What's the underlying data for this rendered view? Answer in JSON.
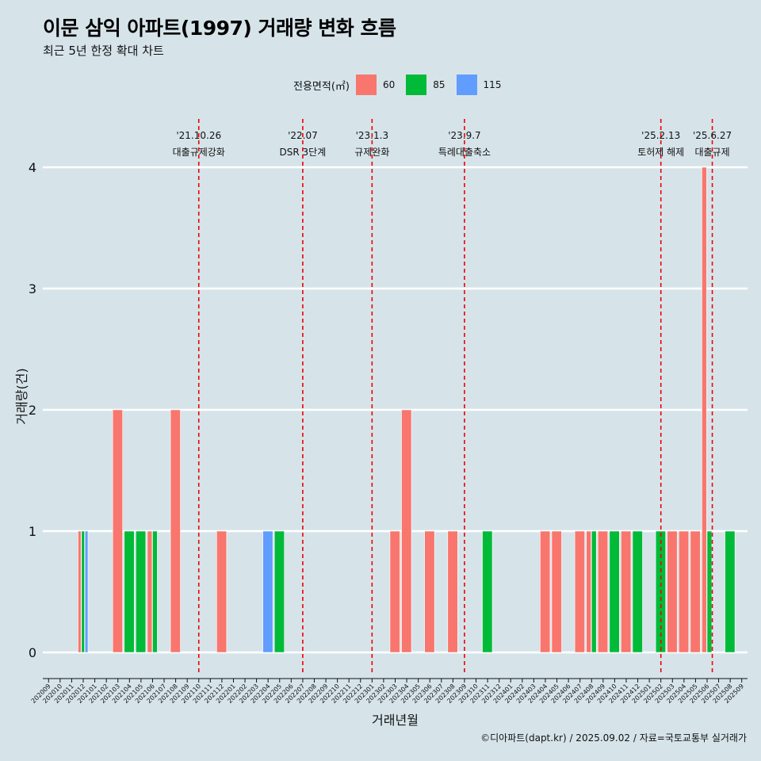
{
  "title": "이문 삼익 아파트(1997) 거래량 변화 흐름",
  "subtitle": "최근 5년 한정 확대 차트",
  "caption": "©디아파트(dapt.kr) / 2025.09.02 / 자료=국토교통부 실거래가",
  "legend": {
    "title": "전용면적(㎡)",
    "items": [
      {
        "label": "60",
        "color": "#f8766d"
      },
      {
        "label": "85",
        "color": "#00ba38"
      },
      {
        "label": "115",
        "color": "#619cff"
      }
    ]
  },
  "chart_data": {
    "type": "bar",
    "stacked": false,
    "title": "이문 삼익 아파트(1997) 거래량 변화 흐름",
    "xlabel": "거래년월",
    "ylabel": "거래량(건)",
    "ylim": [
      0,
      4
    ],
    "yticks": [
      0,
      1,
      2,
      3,
      4
    ],
    "categories": [
      "202009",
      "202010",
      "202011",
      "202012",
      "202101",
      "202102",
      "202103",
      "202104",
      "202105",
      "202106",
      "202107",
      "202108",
      "202109",
      "202110",
      "202111",
      "202112",
      "202201",
      "202202",
      "202203",
      "202204",
      "202205",
      "202206",
      "202207",
      "202208",
      "202209",
      "202210",
      "202211",
      "202212",
      "202301",
      "202302",
      "202303",
      "202304",
      "202305",
      "202306",
      "202307",
      "202308",
      "202309",
      "202310",
      "202311",
      "202312",
      "202401",
      "202402",
      "202403",
      "202404",
      "202405",
      "202406",
      "202407",
      "202408",
      "202409",
      "202410",
      "202411",
      "202412",
      "202501",
      "202502",
      "202503",
      "202504",
      "202505",
      "202506",
      "202507",
      "202508",
      "202509"
    ],
    "series": [
      {
        "name": "60",
        "color": "#f8766d",
        "points": [
          {
            "x": "202012",
            "y": 1
          },
          {
            "x": "202103",
            "y": 2
          },
          {
            "x": "202106",
            "y": 1
          },
          {
            "x": "202108",
            "y": 2
          },
          {
            "x": "202112",
            "y": 1
          },
          {
            "x": "202303",
            "y": 1
          },
          {
            "x": "202304",
            "y": 2
          },
          {
            "x": "202306",
            "y": 1
          },
          {
            "x": "202308",
            "y": 1
          },
          {
            "x": "202404",
            "y": 1
          },
          {
            "x": "202405",
            "y": 1
          },
          {
            "x": "202407",
            "y": 1
          },
          {
            "x": "202408",
            "y": 1
          },
          {
            "x": "202409",
            "y": 1
          },
          {
            "x": "202411",
            "y": 1
          },
          {
            "x": "202503",
            "y": 1
          },
          {
            "x": "202504",
            "y": 1
          },
          {
            "x": "202505",
            "y": 1
          },
          {
            "x": "202506",
            "y": 4
          }
        ]
      },
      {
        "name": "85",
        "color": "#00ba38",
        "points": [
          {
            "x": "202012",
            "y": 1
          },
          {
            "x": "202104",
            "y": 1
          },
          {
            "x": "202105",
            "y": 1
          },
          {
            "x": "202106",
            "y": 1
          },
          {
            "x": "202205",
            "y": 1
          },
          {
            "x": "202311",
            "y": 1
          },
          {
            "x": "202408",
            "y": 1
          },
          {
            "x": "202410",
            "y": 1
          },
          {
            "x": "202412",
            "y": 1
          },
          {
            "x": "202502",
            "y": 1
          },
          {
            "x": "202506",
            "y": 1
          },
          {
            "x": "202508",
            "y": 1
          }
        ]
      },
      {
        "name": "115",
        "color": "#619cff",
        "points": [
          {
            "x": "202012",
            "y": 1
          },
          {
            "x": "202204",
            "y": 1
          }
        ]
      }
    ],
    "events": [
      {
        "at": "202110",
        "offset": 0.0,
        "date": "'21.10.26",
        "label": "대출규제강화"
      },
      {
        "at": "202207",
        "offset": 0.0,
        "date": "'22.07",
        "label": "DSR 3단계"
      },
      {
        "at": "202301",
        "offset": 0.0,
        "date": "'23.1.3",
        "label": "규제완화"
      },
      {
        "at": "202309",
        "offset": 0.0,
        "date": "'23.9.7",
        "label": "특례대출축소"
      },
      {
        "at": "202502",
        "offset": 0.0,
        "date": "'25.2.13",
        "label": "토허제 해제"
      },
      {
        "at": "202506",
        "offset": 0.45,
        "date": "'25.6.27",
        "label": "대출규제"
      }
    ]
  }
}
